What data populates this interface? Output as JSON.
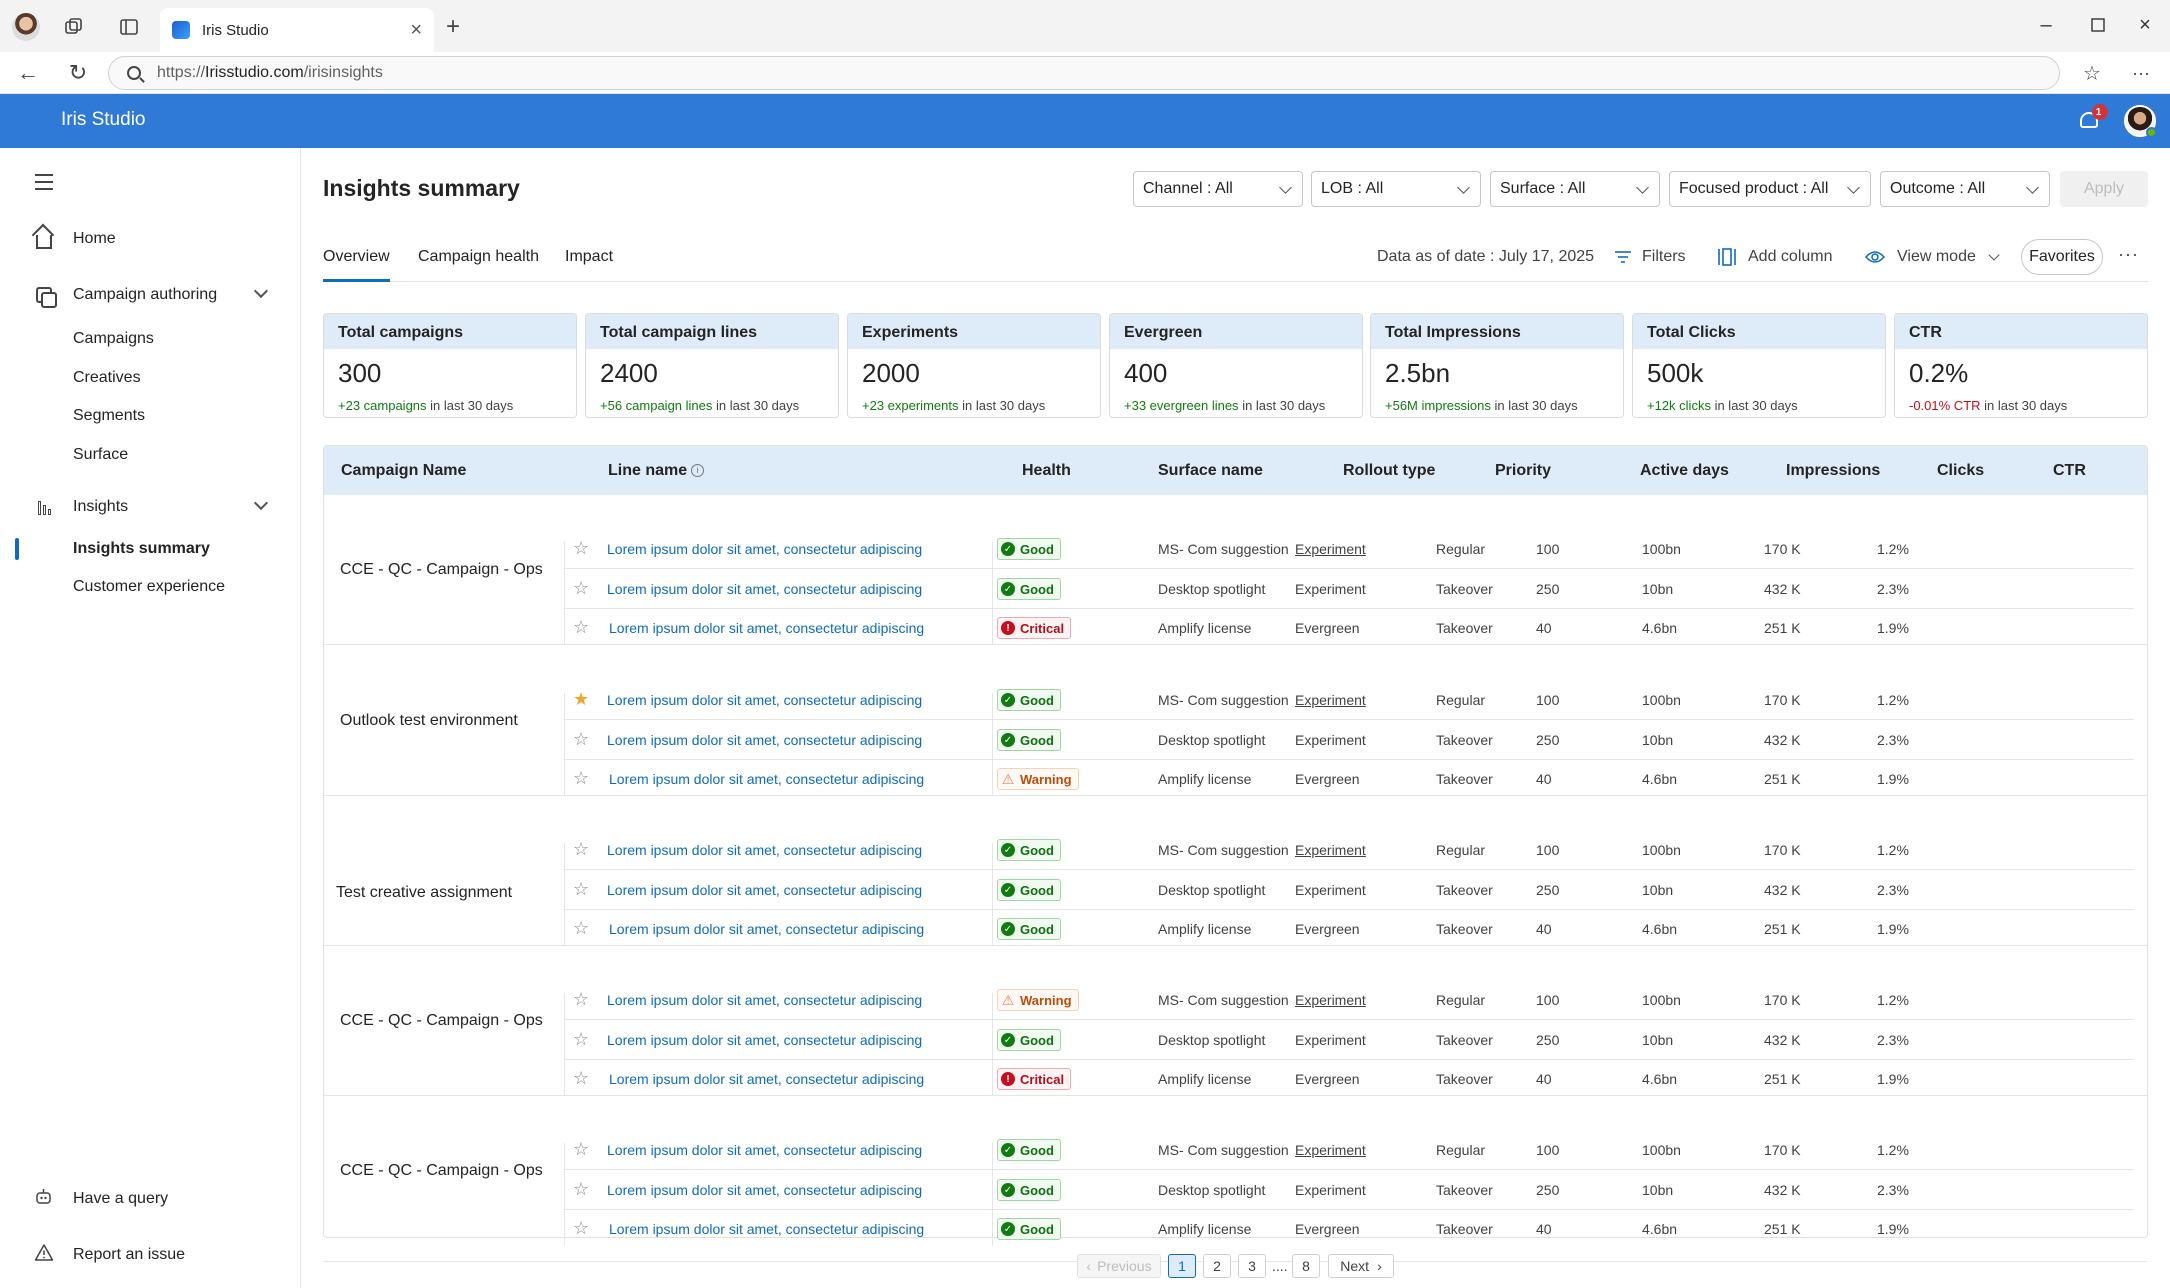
{
  "browser": {
    "tab_title": "Iris Studio",
    "url_prefix": "https://",
    "url_domain": "Irisstudio.com",
    "url_path": "/irisinsights"
  },
  "header": {
    "app_title": "Iris Studio",
    "notification_count": "1"
  },
  "sidebar": {
    "home": "Home",
    "campaign_authoring": "Campaign authoring",
    "campaign_sub": [
      "Campaigns",
      "Creatives",
      "Segments",
      "Surface"
    ],
    "insights": "Insights",
    "insights_sub": [
      "Insights summary",
      "Customer experience"
    ],
    "have_query": "Have a query",
    "report_issue": "Report an issue"
  },
  "page": {
    "title": "Insights summary",
    "filters": [
      "Channel : All",
      "LOB : All",
      "Surface : All",
      "Focused product : All",
      "Outcome : All"
    ],
    "apply": "Apply",
    "tabs": [
      "Overview",
      "Campaign health",
      "Impact"
    ],
    "data_as_of": "Data as of date : July 17, 2025",
    "filters_btn": "Filters",
    "add_column": "Add column",
    "view_mode": "View mode",
    "favorites": "Favorites",
    "more": "···"
  },
  "kpis": [
    {
      "label": "Total campaigns",
      "value": "300",
      "delta": "+23 campaigns",
      "suffix": "in last 30 days",
      "trend": "pos"
    },
    {
      "label": "Total campaign lines",
      "value": "2400",
      "delta": "+56 campaign lines",
      "suffix": "in last 30 days",
      "trend": "pos"
    },
    {
      "label": "Experiments",
      "value": "2000",
      "delta": "+23 experiments",
      "suffix": "in last 30 days",
      "trend": "pos"
    },
    {
      "label": "Evergreen",
      "value": "400",
      "delta": "+33 evergreen lines",
      "suffix": "in last 30 days",
      "trend": "pos"
    },
    {
      "label": "Total Impressions",
      "value": "2.5bn",
      "delta": "+56M impressions",
      "suffix": "in last 30 days",
      "trend": "pos"
    },
    {
      "label": "Total Clicks",
      "value": "500k",
      "delta": "+12k clicks",
      "suffix": "in last 30 days",
      "trend": "pos"
    },
    {
      "label": "CTR",
      "value": "0.2%",
      "delta": "-0.01% CTR",
      "suffix": " in last 30 days",
      "trend": "neg"
    }
  ],
  "table": {
    "columns": [
      "Campaign Name",
      "Line name",
      "Health",
      "Surface name",
      "Rollout type",
      "Priority",
      "Active days",
      "Impressions",
      "Clicks",
      "CTR"
    ],
    "groups": [
      {
        "name": "CCE - QC - Campaign - Ops",
        "rows": [
          {
            "starred": false,
            "line": "Lorem ipsum dolor sit amet, consectetur adipiscing",
            "health": "Good",
            "surface": "MS- Com suggestion",
            "rollout": "Experiment",
            "rollout_link": true,
            "priority": "Regular",
            "days": "100",
            "impressions": "100bn",
            "clicks": "170 K",
            "ctr": "1.2%"
          },
          {
            "starred": false,
            "line": "Lorem ipsum dolor sit amet, consectetur adipiscing",
            "health": "Good",
            "surface": "Desktop spotlight",
            "rollout": "Experiment",
            "rollout_link": false,
            "priority": "Takeover",
            "days": "250",
            "impressions": "10bn",
            "clicks": "432 K",
            "ctr": "2.3%"
          },
          {
            "starred": false,
            "line": "Lorem ipsum dolor sit amet, consectetur adipiscing",
            "health": "Critical",
            "surface": "Amplify license",
            "rollout": "Evergreen",
            "rollout_link": false,
            "priority": "Takeover",
            "days": "40",
            "impressions": "4.6bn",
            "clicks": "251 K",
            "ctr": "1.9%"
          }
        ]
      },
      {
        "name": "Outlook test environment",
        "rows": [
          {
            "starred": true,
            "line": "Lorem ipsum dolor sit amet, consectetur adipiscing",
            "health": "Good",
            "surface": "MS- Com suggestion",
            "rollout": "Experiment",
            "rollout_link": true,
            "priority": "Regular",
            "days": "100",
            "impressions": "100bn",
            "clicks": "170 K",
            "ctr": "1.2%"
          },
          {
            "starred": false,
            "line": "Lorem ipsum dolor sit amet, consectetur adipiscing",
            "health": "Good",
            "surface": "Desktop spotlight",
            "rollout": "Experiment",
            "rollout_link": false,
            "priority": "Takeover",
            "days": "250",
            "impressions": "10bn",
            "clicks": "432 K",
            "ctr": "2.3%"
          },
          {
            "starred": false,
            "line": "Lorem ipsum dolor sit amet, consectetur adipiscing",
            "health": "Warning",
            "surface": "Amplify license",
            "rollout": "Evergreen",
            "rollout_link": false,
            "priority": "Takeover",
            "days": "40",
            "impressions": "4.6bn",
            "clicks": "251 K",
            "ctr": "1.9%"
          }
        ]
      },
      {
        "name": "Test creative assignment",
        "rows": [
          {
            "starred": false,
            "line": "Lorem ipsum dolor sit amet, consectetur adipiscing",
            "health": "Good",
            "surface": "MS- Com suggestion",
            "rollout": "Experiment",
            "rollout_link": true,
            "priority": "Regular",
            "days": "100",
            "impressions": "100bn",
            "clicks": "170 K",
            "ctr": "1.2%"
          },
          {
            "starred": false,
            "line": "Lorem ipsum dolor sit amet, consectetur adipiscing",
            "health": "Good",
            "surface": "Desktop spotlight",
            "rollout": "Experiment",
            "rollout_link": false,
            "priority": "Takeover",
            "days": "250",
            "impressions": "10bn",
            "clicks": "432 K",
            "ctr": "2.3%"
          },
          {
            "starred": false,
            "line": "Lorem ipsum dolor sit amet, consectetur adipiscing",
            "health": "Good",
            "surface": "Amplify license",
            "rollout": "Evergreen",
            "rollout_link": false,
            "priority": "Takeover",
            "days": "40",
            "impressions": "4.6bn",
            "clicks": "251 K",
            "ctr": "1.9%"
          }
        ]
      },
      {
        "name": "CCE - QC - Campaign - Ops",
        "rows": [
          {
            "starred": false,
            "line": "Lorem ipsum dolor sit amet, consectetur adipiscing",
            "health": "Warning",
            "surface": "MS- Com suggestion",
            "rollout": "Experiment",
            "rollout_link": true,
            "priority": "Regular",
            "days": "100",
            "impressions": "100bn",
            "clicks": "170 K",
            "ctr": "1.2%"
          },
          {
            "starred": false,
            "line": "Lorem ipsum dolor sit amet, consectetur adipiscing",
            "health": "Good",
            "surface": "Desktop spotlight",
            "rollout": "Experiment",
            "rollout_link": false,
            "priority": "Takeover",
            "days": "250",
            "impressions": "10bn",
            "clicks": "432 K",
            "ctr": "2.3%"
          },
          {
            "starred": false,
            "line": "Lorem ipsum dolor sit amet, consectetur adipiscing",
            "health": "Critical",
            "surface": "Amplify license",
            "rollout": "Evergreen",
            "rollout_link": false,
            "priority": "Takeover",
            "days": "40",
            "impressions": "4.6bn",
            "clicks": "251 K",
            "ctr": "1.9%"
          }
        ]
      },
      {
        "name": "CCE - QC - Campaign - Ops",
        "rows": [
          {
            "starred": false,
            "line": "Lorem ipsum dolor sit amet, consectetur adipiscing",
            "health": "Good",
            "surface": "MS- Com suggestion",
            "rollout": "Experiment",
            "rollout_link": true,
            "priority": "Regular",
            "days": "100",
            "impressions": "100bn",
            "clicks": "170 K",
            "ctr": "1.2%"
          },
          {
            "starred": false,
            "line": "Lorem ipsum dolor sit amet, consectetur adipiscing",
            "health": "Good",
            "surface": "Desktop spotlight",
            "rollout": "Experiment",
            "rollout_link": false,
            "priority": "Takeover",
            "days": "250",
            "impressions": "10bn",
            "clicks": "432 K",
            "ctr": "2.3%"
          },
          {
            "starred": false,
            "line": "Lorem ipsum dolor sit amet, consectetur adipiscing",
            "health": "Good",
            "surface": "Amplify license",
            "rollout": "Evergreen",
            "rollout_link": false,
            "priority": "Takeover",
            "days": "40",
            "impressions": "4.6bn",
            "clicks": "251 K",
            "ctr": "1.9%"
          }
        ]
      }
    ]
  },
  "pagination": {
    "previous": "Previous",
    "pages": [
      "1",
      "2",
      "3",
      "8"
    ],
    "ellipsis": "....",
    "current": "1",
    "next": "Next"
  }
}
